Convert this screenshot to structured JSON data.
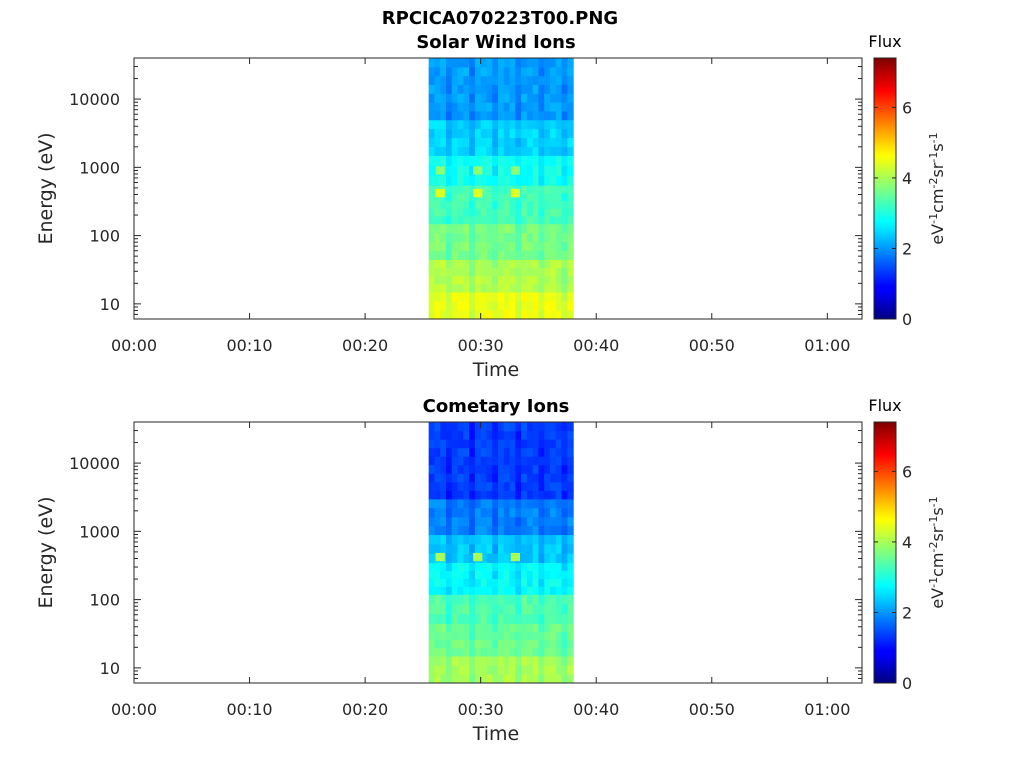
{
  "figure_title": "RPCICA070223T00.PNG",
  "colorbar": {
    "title": "Flux",
    "unit_label": "eV-1cm-2sr-1s-1",
    "range": [
      0,
      7.4
    ],
    "ticks": [
      0,
      2,
      4,
      6
    ],
    "tick_labels": [
      "0",
      "2",
      "4",
      "6"
    ],
    "colormap": "jet"
  },
  "chart_data": [
    {
      "type": "heatmap",
      "title": "Solar Wind Ions",
      "xlabel": "Time",
      "ylabel": "Energy (eV)",
      "xlim": [
        "00:00",
        "01:03"
      ],
      "xticks": [
        "00:00",
        "00:10",
        "00:20",
        "00:30",
        "00:40",
        "00:50",
        "01:00"
      ],
      "yscale": "log",
      "ylim": [
        6,
        40000
      ],
      "yticks": [
        10,
        100,
        1000,
        10000
      ],
      "ytick_labels": [
        "10",
        "100",
        "1000",
        "10000"
      ],
      "data_time_range": [
        "00:25:30",
        "00:38:00"
      ],
      "energy_bands": [
        {
          "energy_range": [
            6,
            15
          ],
          "flux": 4.5
        },
        {
          "energy_range": [
            15,
            45
          ],
          "flux": 4.1
        },
        {
          "energy_range": [
            45,
            150
          ],
          "flux": 3.7
        },
        {
          "energy_range": [
            150,
            550
          ],
          "flux": 3.3
        },
        {
          "energy_range": [
            550,
            1500
          ],
          "flux": 2.9
        },
        {
          "energy_range": [
            1500,
            5000
          ],
          "flux": 2.5
        },
        {
          "energy_range": [
            5000,
            40000
          ],
          "flux": 2.1
        }
      ],
      "hotspots": [
        {
          "time": "00:26:30",
          "energy": 420,
          "flux": 4.4
        },
        {
          "time": "00:29:45",
          "energy": 420,
          "flux": 4.4
        },
        {
          "time": "00:33:00",
          "energy": 420,
          "flux": 4.4
        },
        {
          "time": "00:26:30",
          "energy": 900,
          "flux": 3.8
        },
        {
          "time": "00:29:45",
          "energy": 900,
          "flux": 3.8
        },
        {
          "time": "00:33:00",
          "energy": 900,
          "flux": 3.8
        }
      ]
    },
    {
      "type": "heatmap",
      "title": "Cometary Ions",
      "xlabel": "Time",
      "ylabel": "Energy (eV)",
      "xlim": [
        "00:00",
        "01:03"
      ],
      "xticks": [
        "00:00",
        "00:10",
        "00:20",
        "00:30",
        "00:40",
        "00:50",
        "01:00"
      ],
      "yscale": "log",
      "ylim": [
        6,
        40000
      ],
      "yticks": [
        10,
        100,
        1000,
        10000
      ],
      "ytick_labels": [
        "10",
        "100",
        "1000",
        "10000"
      ],
      "data_time_range": [
        "00:25:30",
        "00:38:00"
      ],
      "energy_bands": [
        {
          "energy_range": [
            6,
            15
          ],
          "flux": 4.0
        },
        {
          "energy_range": [
            15,
            45
          ],
          "flux": 3.6
        },
        {
          "energy_range": [
            45,
            120
          ],
          "flux": 3.4
        },
        {
          "energy_range": [
            120,
            350
          ],
          "flux": 2.8
        },
        {
          "energy_range": [
            350,
            900
          ],
          "flux": 2.4
        },
        {
          "energy_range": [
            900,
            3000
          ],
          "flux": 1.9
        },
        {
          "energy_range": [
            3000,
            40000
          ],
          "flux": 1.4
        }
      ],
      "hotspots": [
        {
          "time": "00:26:30",
          "energy": 420,
          "flux": 4.0
        },
        {
          "time": "00:29:45",
          "energy": 420,
          "flux": 4.0
        },
        {
          "time": "00:33:00",
          "energy": 420,
          "flux": 4.0
        }
      ]
    }
  ]
}
